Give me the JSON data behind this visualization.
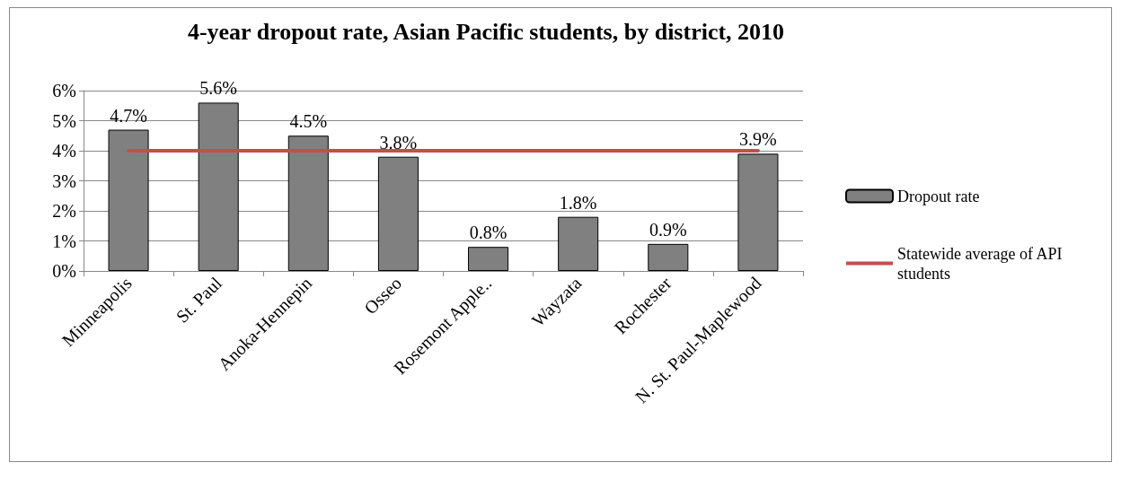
{
  "chart_data": {
    "type": "bar",
    "title": "4-year dropout rate, Asian Pacific students, by district, 2010",
    "categories": [
      "Minneapolis",
      "St. Paul",
      "Anoka-Hennepin",
      "Osseo",
      "Rosemont Apple..",
      "Wayzata",
      "Rochester",
      "N. St. Paul-Maplewood"
    ],
    "series": [
      {
        "name": "Dropout rate",
        "color": "#808080",
        "values": [
          4.7,
          5.6,
          4.5,
          3.8,
          0.8,
          1.8,
          0.9,
          3.9
        ],
        "value_labels": [
          "4.7%",
          "5.6%",
          "4.5%",
          "3.8%",
          "0.8%",
          "1.8%",
          "0.9%",
          "3.9%"
        ]
      },
      {
        "name": "Statewide average of API students",
        "type": "line",
        "color": "#c0504d",
        "values": [
          4,
          4,
          4,
          4,
          4,
          4,
          4,
          4
        ]
      }
    ],
    "ylim": [
      0,
      6
    ],
    "yticks": [
      {
        "value": 0,
        "label": "0%"
      },
      {
        "value": 1,
        "label": "1%"
      },
      {
        "value": 2,
        "label": "2%"
      },
      {
        "value": 3,
        "label": "3%"
      },
      {
        "value": 4,
        "label": "4%"
      },
      {
        "value": 5,
        "label": "5%"
      },
      {
        "value": 6,
        "label": "6%"
      }
    ],
    "grid": "y",
    "legend": "right",
    "marker": "none"
  }
}
